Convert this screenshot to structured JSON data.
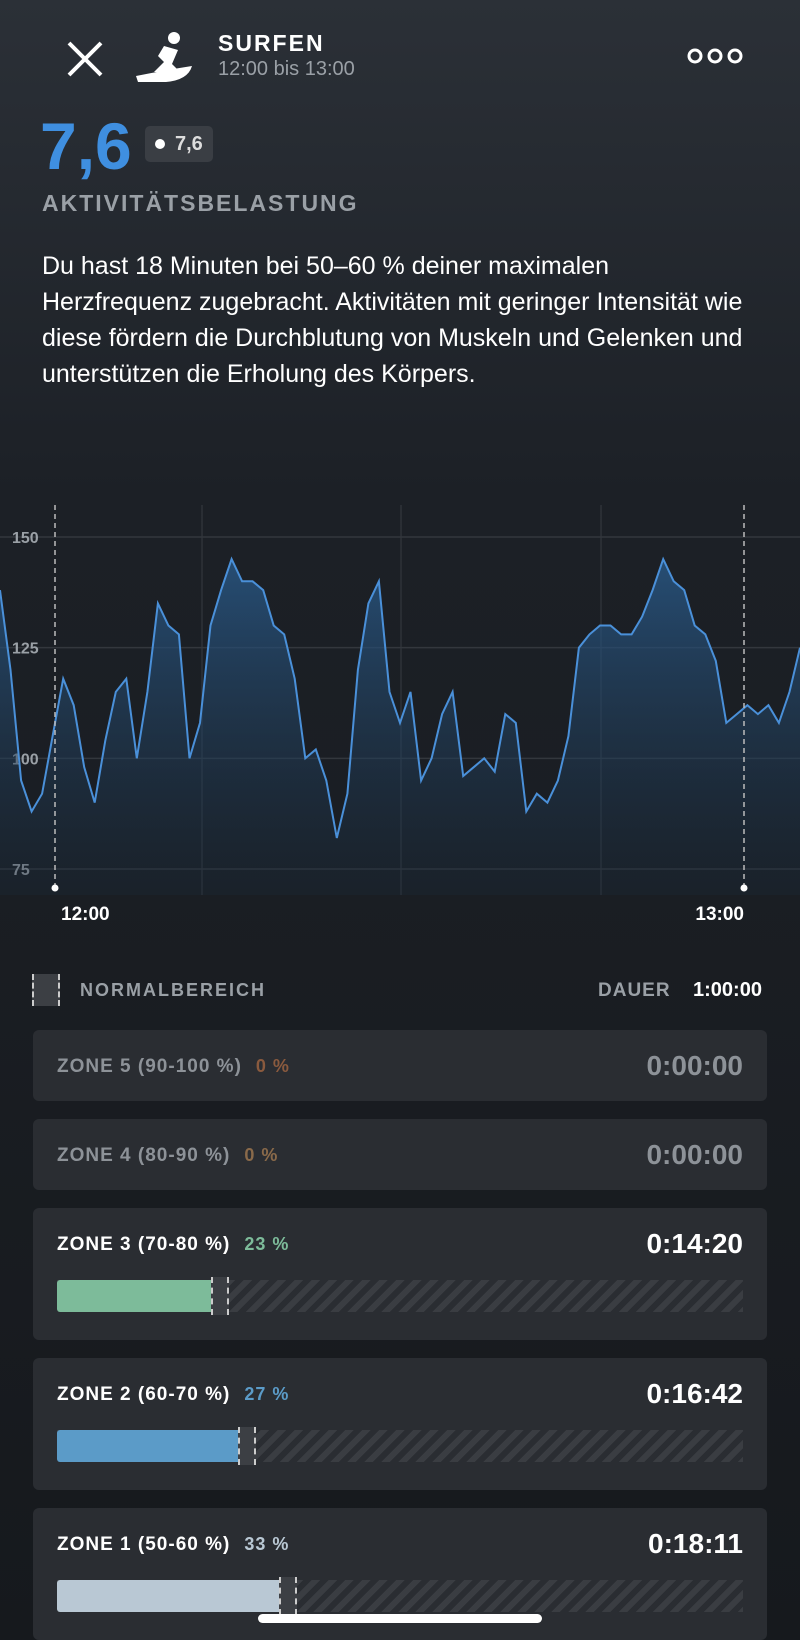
{
  "header": {
    "title": "SURFEN",
    "subtitle": "12:00 bis 13:00"
  },
  "score": {
    "value": "7,6",
    "badge": "7,6",
    "label": "AKTIVITÄTSBELASTUNG"
  },
  "description": "Du hast 18 Minuten bei 50–60 % deiner maximalen Herzfrequenz zugebracht. Aktivitäten mit geringer Intensität wie diese fördern die Durchblutung von Muskeln und Gelenken und unterstützen die Erholung des Körpers.",
  "chart_data": {
    "type": "line",
    "color": "#4a90d9",
    "values": [
      138,
      120,
      95,
      88,
      92,
      105,
      118,
      112,
      98,
      90,
      104,
      115,
      118,
      100,
      115,
      135,
      130,
      128,
      100,
      108,
      130,
      138,
      145,
      140,
      140,
      138,
      130,
      128,
      118,
      100,
      102,
      95,
      82,
      92,
      120,
      135,
      140,
      115,
      108,
      115,
      95,
      100,
      110,
      115,
      96,
      98,
      100,
      97,
      110,
      108,
      88,
      92,
      90,
      95,
      105,
      125,
      128,
      130,
      130,
      128,
      128,
      132,
      138,
      145,
      140,
      138,
      130,
      128,
      122,
      108,
      110,
      112,
      110,
      112,
      108,
      115,
      125
    ],
    "ylim": [
      75,
      150
    ],
    "yticks": [
      75,
      100,
      125,
      150
    ],
    "x_labels": [
      "12:00",
      "13:00"
    ],
    "grid": true
  },
  "legend": {
    "normal": "NORMALBEREICH",
    "duration_label": "DAUER",
    "duration": "1:00:00"
  },
  "zones": {
    "names": [
      "ZONE 5 (90-100 %)",
      "ZONE 4 (80-90 %)",
      "ZONE 3 (70-80 %)",
      "ZONE 2 (60-70 %)",
      "ZONE 1 (50-60 %)"
    ],
    "values": [
      0,
      0,
      23,
      27,
      33
    ],
    "value_labels": [
      "0 %",
      "0 %",
      "23 %",
      "27 %",
      "33 %"
    ],
    "durations": [
      "0:00:00",
      "0:00:00",
      "0:14:20",
      "0:16:42",
      "0:18:11"
    ],
    "colors": [
      "#8a5a3e",
      "#8a6a4a",
      "#7dbb9a",
      "#5b9bc8",
      "#b9c8d4"
    ]
  }
}
